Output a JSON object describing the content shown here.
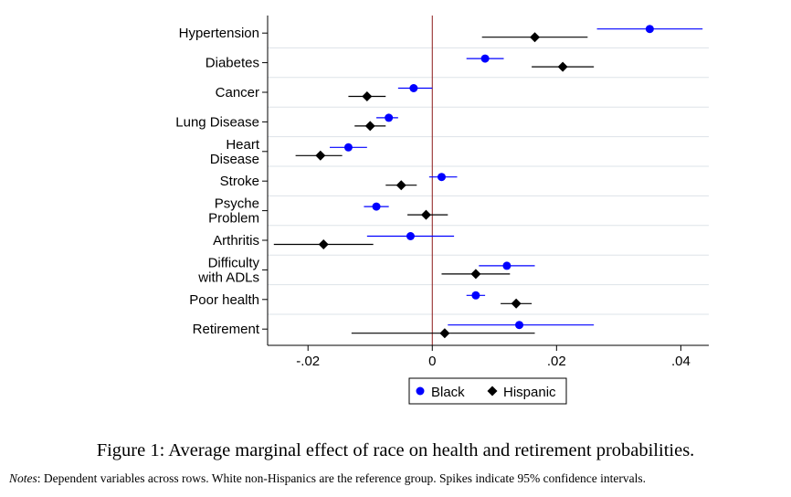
{
  "chart_data": {
    "type": "dot-whisker",
    "categories": [
      [
        "Hypertension"
      ],
      [
        "Diabetes"
      ],
      [
        "Cancer"
      ],
      [
        "Lung Disease"
      ],
      [
        "Heart",
        "Disease"
      ],
      [
        "Stroke"
      ],
      [
        "Psyche",
        "Problem"
      ],
      [
        "Arthritis"
      ],
      [
        "Difficulty",
        "with ADLs"
      ],
      [
        "Poor health"
      ],
      [
        "Retirement"
      ]
    ],
    "x_ticks": [
      "-.02",
      "0",
      ".02",
      ".04"
    ],
    "x_tick_values": [
      -0.02,
      0,
      0.02,
      0.04
    ],
    "xlim": [
      -0.0265,
      0.0445
    ],
    "reference_line": 0,
    "grid": true,
    "legend_position": "bottom-center",
    "series": [
      {
        "name": "Black",
        "color": "#0000ff",
        "marker": "circle",
        "estimates": [
          0.035,
          0.0085,
          -0.003,
          -0.007,
          -0.0135,
          0.0015,
          -0.009,
          -0.0035,
          0.012,
          0.007,
          0.014
        ],
        "ci_low": [
          0.0265,
          0.0055,
          -0.0055,
          -0.009,
          -0.0165,
          -0.0005,
          -0.011,
          -0.0105,
          0.0075,
          0.0055,
          0.0025
        ],
        "ci_high": [
          0.0435,
          0.0115,
          0.0,
          -0.0055,
          -0.0105,
          0.004,
          -0.007,
          0.0035,
          0.0165,
          0.0085,
          0.026
        ]
      },
      {
        "name": "Hispanic",
        "color": "#000000",
        "marker": "diamond",
        "estimates": [
          0.0165,
          0.021,
          -0.0105,
          -0.01,
          -0.018,
          -0.005,
          -0.001,
          -0.0175,
          0.007,
          0.0135,
          0.002
        ],
        "ci_low": [
          0.008,
          0.016,
          -0.0135,
          -0.0125,
          -0.022,
          -0.0075,
          -0.004,
          -0.0255,
          0.0015,
          0.011,
          -0.013
        ],
        "ci_high": [
          0.025,
          0.026,
          -0.0075,
          -0.0075,
          -0.0145,
          -0.0025,
          0.0025,
          -0.0095,
          0.0125,
          0.016,
          0.0165
        ]
      }
    ]
  },
  "caption": "Figure 1: Average marginal effect of race on health and retirement probabilities.",
  "notes": {
    "label": "Notes",
    "text": ": Dependent variables across rows. White non-Hispanics are the reference group. Spikes indicate 95% confidence intervals."
  }
}
